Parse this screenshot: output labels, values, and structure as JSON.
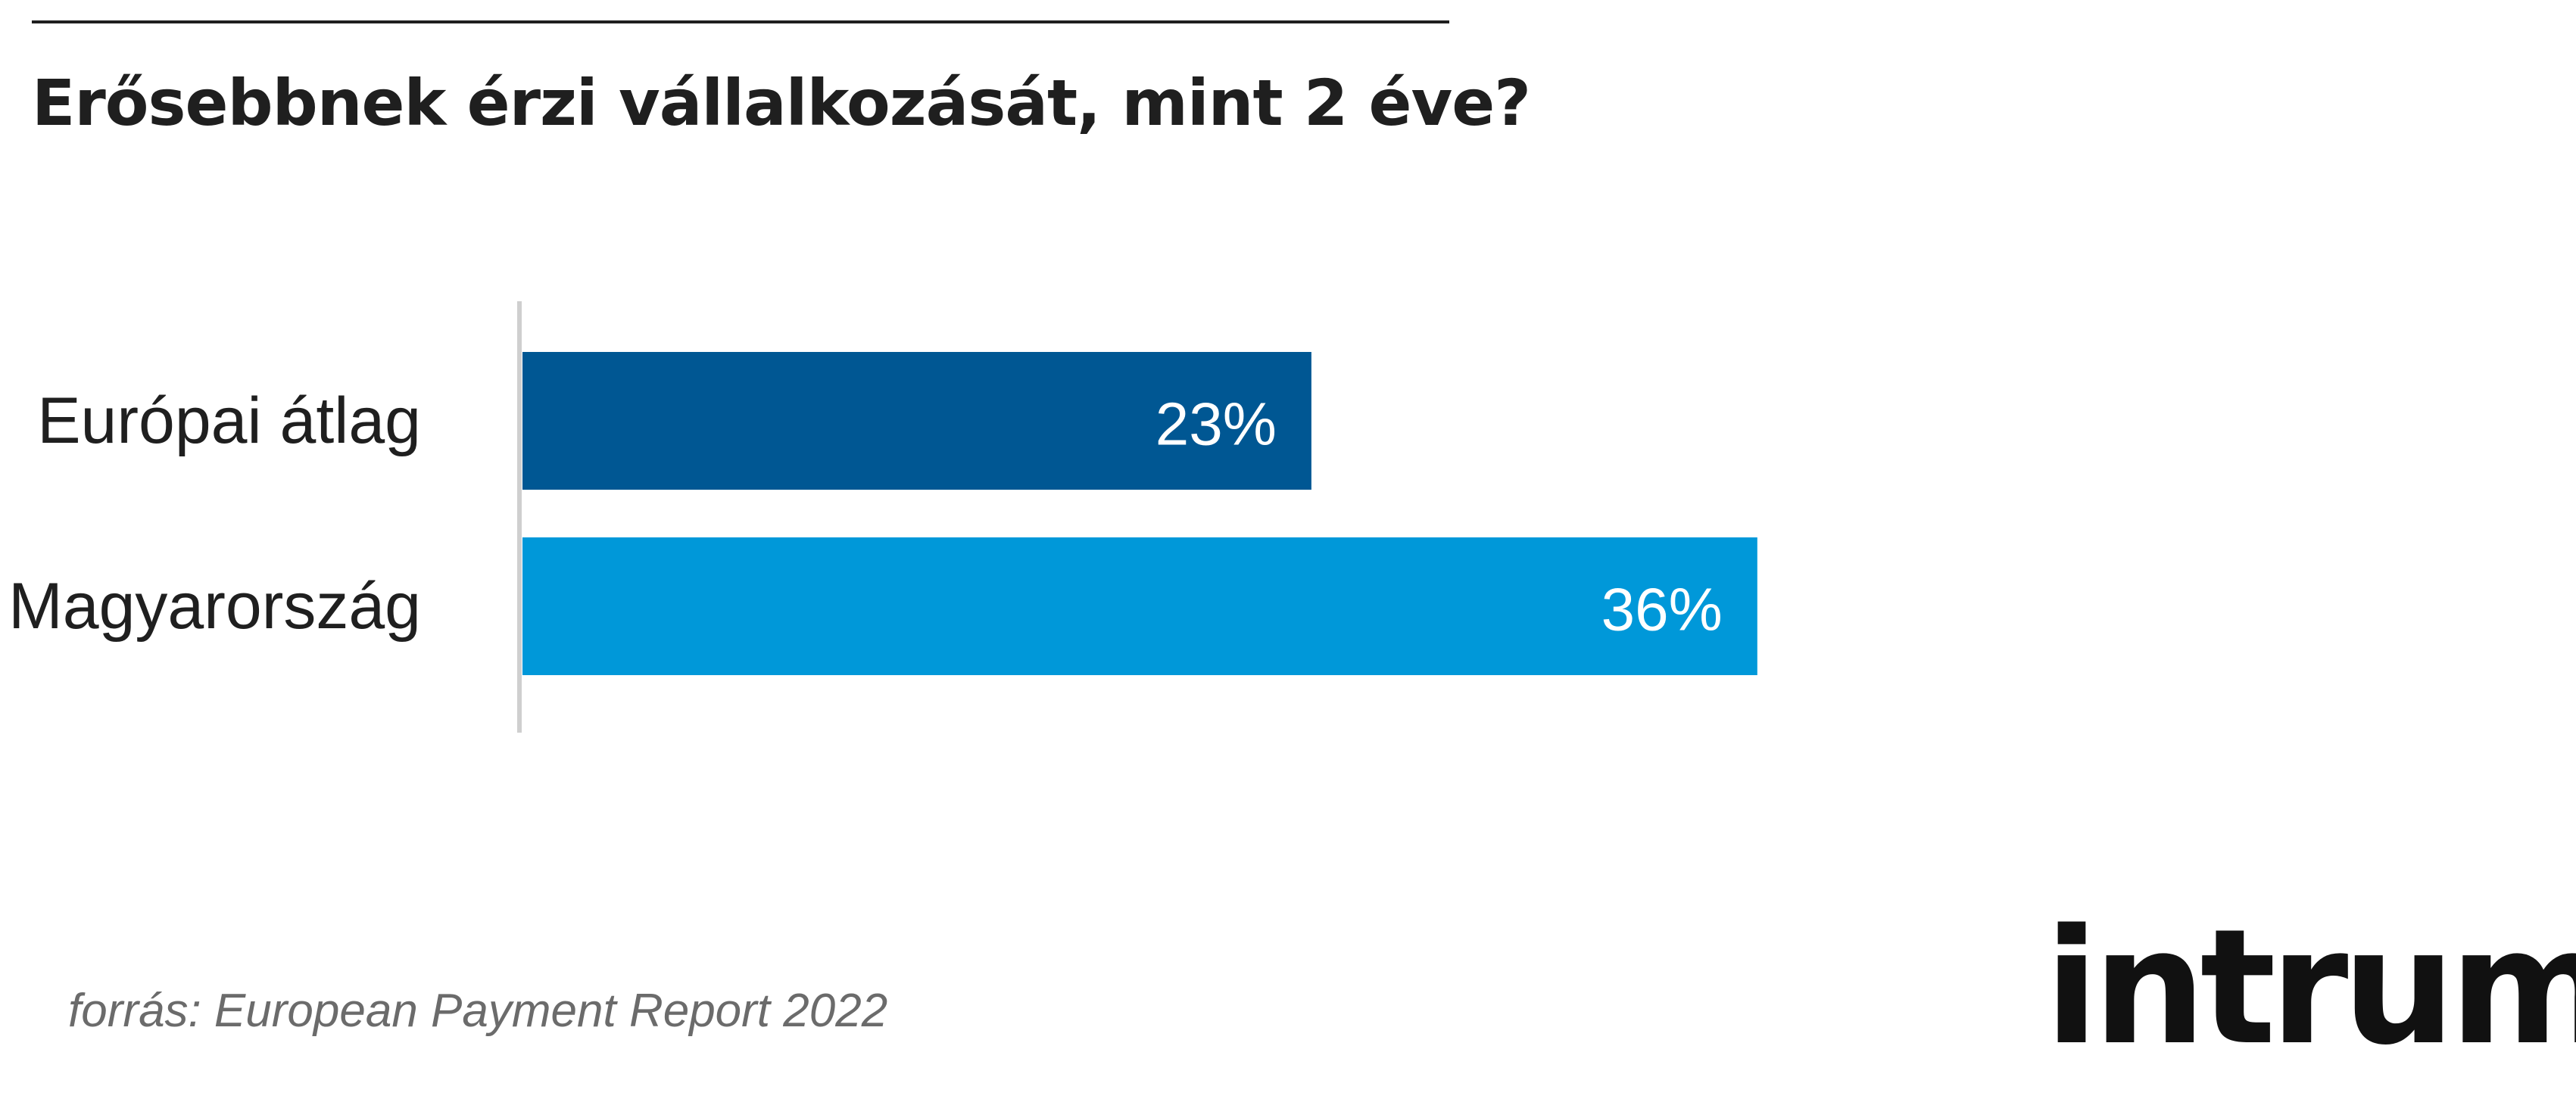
{
  "chart_data": {
    "type": "bar",
    "orientation": "horizontal",
    "title": "Erősebbnek érzi vállalkozását, mint 2 éve?",
    "categories": [
      "Európai átlag",
      "Magyarország"
    ],
    "values": [
      23,
      36
    ],
    "value_labels": [
      "23%",
      "36%"
    ],
    "colors": [
      "#005793",
      "#0098d9"
    ],
    "xlim": [
      0,
      40
    ],
    "grid": false,
    "legend": "none"
  },
  "footer": {
    "source": "forrás: European Payment Report 2022"
  },
  "logo": {
    "text": "intrum"
  }
}
